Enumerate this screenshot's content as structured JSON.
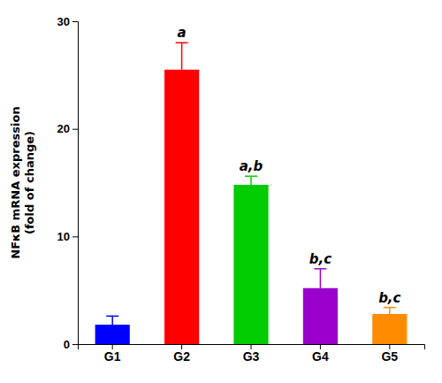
{
  "chart_data": {
    "type": "bar",
    "categories": [
      "G1",
      "G2",
      "G3",
      "G4",
      "G5"
    ],
    "values": [
      1.8,
      25.5,
      14.8,
      5.2,
      2.8
    ],
    "errors": [
      0.8,
      2.5,
      0.8,
      1.8,
      0.6
    ],
    "colors": [
      "#0000FF",
      "#FF0000",
      "#00CC00",
      "#9900CC",
      "#FF8C00"
    ],
    "annotations": [
      null,
      "a",
      "a,b",
      "b,c",
      "b,c"
    ],
    "ylabel": [
      "NFκB mRNA expression",
      "(fold of change)"
    ],
    "ylim": [
      0,
      30
    ],
    "yticks": [
      0,
      10,
      20,
      30
    ],
    "grid": false
  }
}
